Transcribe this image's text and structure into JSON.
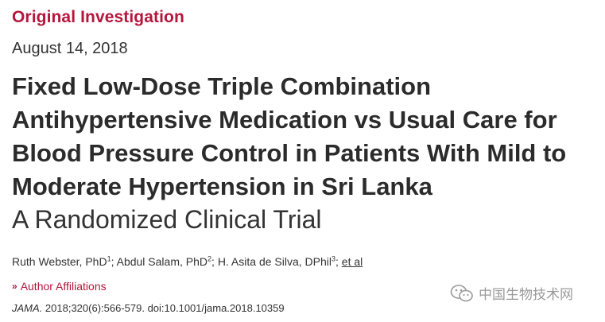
{
  "article": {
    "section_label": "Original Investigation",
    "date": "August 14, 2018",
    "title": "Fixed Low-Dose Triple Combination Antihypertensive Medication vs Usual Care for Blood Pressure Control in Patients With Mild to Moderate Hypertension in Sri Lanka",
    "subtitle": "A Randomized Clinical Trial",
    "authors": [
      {
        "name": "Ruth Webster, PhD",
        "sup": "1"
      },
      {
        "name": "Abdul Salam, PhD",
        "sup": "2"
      },
      {
        "name": "H. Asita de Silva, DPhil",
        "sup": "3"
      }
    ],
    "author_separator": "; ",
    "et_al_label": "et al",
    "affiliations_label": "Author Affiliations",
    "citation": {
      "journal": "JAMA.",
      "details": " 2018;320(6):566-579. doi:10.1001/jama.2018.10359"
    }
  },
  "watermark": {
    "text": "中国生物技术网",
    "icon": "wechat-logo-icon"
  },
  "colors": {
    "accent": "#b5163c",
    "text": "#333333",
    "watermark": "#9a9a9a"
  }
}
